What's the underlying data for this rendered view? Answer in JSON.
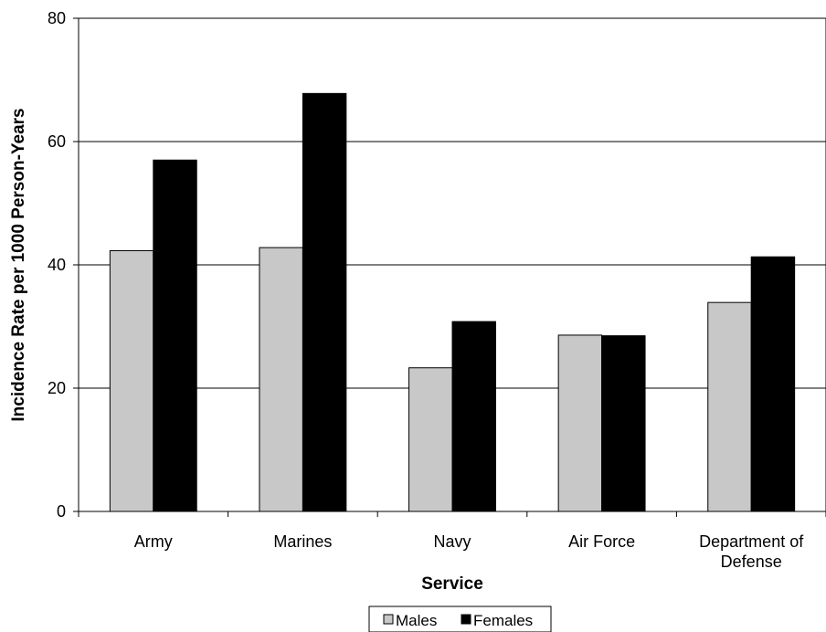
{
  "chart_data": {
    "type": "bar",
    "categories": [
      [
        "Army"
      ],
      [
        "Marines"
      ],
      [
        "Navy"
      ],
      [
        "Air Force"
      ],
      [
        "Department of",
        "Defense"
      ]
    ],
    "series": [
      {
        "name": "Males",
        "color": "#c8c8c8",
        "values": [
          42.3,
          42.8,
          23.3,
          28.6,
          33.9
        ]
      },
      {
        "name": "Females",
        "color": "#000000",
        "values": [
          57.0,
          67.8,
          30.8,
          28.5,
          41.3
        ]
      }
    ],
    "xlabel": "Service",
    "ylabel": "Incidence Rate per 1000 Person-Years",
    "ylim": [
      0,
      80
    ],
    "yticks": [
      0,
      20,
      40,
      60,
      80
    ],
    "grid": true,
    "legend_position": "bottom"
  }
}
